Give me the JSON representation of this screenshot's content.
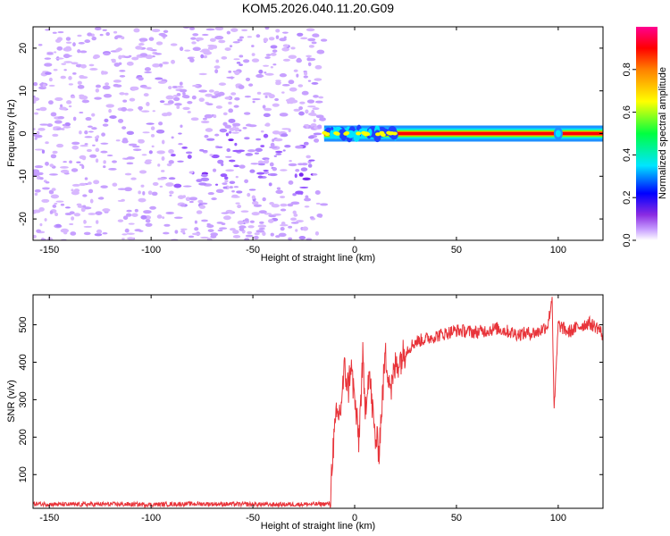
{
  "title": "KOM5.2026.040.11.20.G09",
  "colors": {
    "snr_line": "#e8343a",
    "frame": "#000000"
  },
  "chart_data": [
    {
      "type": "heatmap",
      "xlabel": "Height of straight line (km)",
      "ylabel": "Frequency (Hz)",
      "xlim": [
        -158,
        122
      ],
      "ylim": [
        -25,
        25
      ],
      "x_ticks": [
        -150,
        -100,
        -50,
        0,
        50,
        100
      ],
      "y_ticks": [
        -20,
        -10,
        0,
        10,
        20
      ],
      "colorbar": {
        "label": "Normalized spectral amplitude",
        "range": [
          0,
          1
        ],
        "ticks": [
          "0.0",
          "0.2",
          "0.4",
          "0.6",
          "0.8"
        ]
      },
      "features": {
        "noise_region_x": [
          -158,
          -15
        ],
        "carrier_start_x": -15,
        "carrier_frequency_hz": 0,
        "carrier_amplitude_after_25km": 1.0
      }
    },
    {
      "type": "line",
      "xlabel": "Height of straight line (km)",
      "ylabel": "SNR (v/v)",
      "xlim": [
        -158,
        122
      ],
      "ylim": [
        10,
        580
      ],
      "x_ticks": [
        -150,
        -100,
        -50,
        0,
        50,
        100
      ],
      "y_ticks": [
        100,
        200,
        300,
        400,
        500
      ],
      "series": [
        {
          "x": [
            -158,
            -140,
            -120,
            -100,
            -80,
            -60,
            -40,
            -20,
            -12,
            -11,
            -9,
            -7,
            -5,
            -3,
            -2,
            0,
            2,
            4,
            5,
            7,
            10,
            12,
            15,
            18,
            20,
            25,
            30,
            40,
            50,
            60,
            70,
            80,
            90,
            95,
            97,
            98,
            100,
            105,
            110,
            115,
            120,
            122
          ],
          "y": [
            22,
            20,
            21,
            20,
            22,
            21,
            20,
            21,
            22,
            150,
            250,
            270,
            380,
            330,
            400,
            300,
            190,
            410,
            270,
            380,
            200,
            170,
            420,
            330,
            390,
            430,
            455,
            470,
            485,
            480,
            490,
            475,
            480,
            500,
            575,
            265,
            500,
            480,
            495,
            505,
            490,
            470
          ]
        }
      ]
    }
  ]
}
